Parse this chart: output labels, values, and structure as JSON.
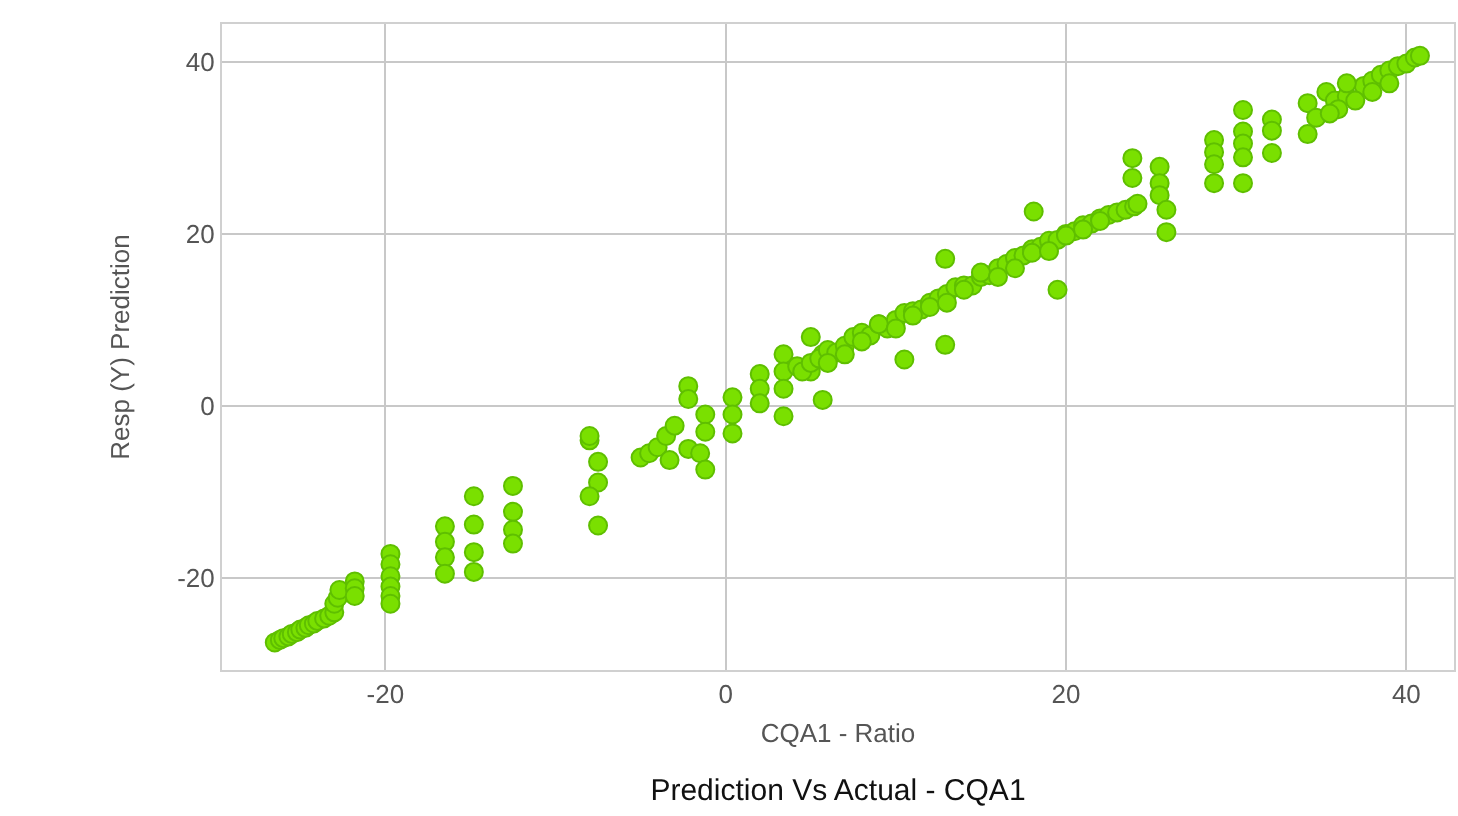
{
  "chart_data": {
    "type": "scatter",
    "title": "Prediction Vs Actual - CQA1",
    "xlabel": "CQA1 - Ratio",
    "ylabel": "Resp (Y) Prediction",
    "xlim": [
      -29.6,
      42.8
    ],
    "ylim": [
      -30.7,
      44.4
    ],
    "xticks": [
      -20,
      0,
      20,
      40
    ],
    "yticks": [
      -20,
      0,
      20,
      40
    ],
    "grid": true,
    "marker": "circle",
    "series": [
      {
        "color": "#7ae000",
        "x": [
          -26.5,
          -26.2,
          -26,
          -25.7,
          -25.5,
          -25.2,
          -25,
          -24.7,
          -24.5,
          -24.2,
          -24,
          -23.6,
          -23.3,
          -23,
          -23,
          -22.8,
          -22.7,
          -21.8,
          -21.8,
          -21.8,
          -19.7,
          -19.7,
          -19.7,
          -19.7,
          -19.7,
          -19.7,
          -16.5,
          -16.5,
          -16.5,
          -16.5,
          -14.8,
          -14.8,
          -14.8,
          -14.8,
          -12.5,
          -12.5,
          -12.5,
          -12.5,
          -8,
          -8,
          -7.5,
          -7.5,
          -8,
          -7.5,
          -5,
          -4.5,
          -4,
          -3.5,
          -3,
          -3.3,
          -2.2,
          -2.2,
          -1.2,
          -1.2,
          -2.2,
          -1.5,
          -1.2,
          0.4,
          0.4,
          0.4,
          2,
          2,
          2,
          3.4,
          3.4,
          3.4,
          3.4,
          5,
          5.7,
          5,
          5.7,
          4.2,
          4.5,
          5,
          5.5,
          6,
          6.5,
          7,
          7.5,
          8,
          8.5,
          9,
          9.5,
          10,
          10.5,
          11,
          11.5,
          12,
          12.5,
          13,
          13.5,
          14,
          14.5,
          15,
          15.5,
          16,
          16.5,
          17,
          17.5,
          18,
          18.5,
          19,
          19.5,
          20,
          20.5,
          21,
          21.5,
          22,
          22.5,
          23,
          23.5,
          24,
          24.2,
          6,
          7,
          8,
          9,
          10,
          11,
          12,
          13,
          14,
          15,
          16,
          17,
          18,
          19,
          20,
          21,
          22,
          12.9,
          10.5,
          19.5,
          18.1,
          12.9,
          23.9,
          23.9,
          25.9,
          25.5,
          25.5,
          25.5,
          25.9,
          28.7,
          28.7,
          28.7,
          28.7,
          30.4,
          30.4,
          30.4,
          30.4,
          30.4,
          32.1,
          32.1,
          32.1,
          34.2,
          34.7,
          34.2,
          35.3,
          35.8,
          36.5,
          37.5,
          38,
          38.5,
          39,
          39.5,
          40,
          40.5,
          40.8,
          36,
          37,
          38,
          39,
          35.5,
          36.5
        ],
        "values": [
          -27.5,
          -27.2,
          -27,
          -26.8,
          -26.5,
          -26.3,
          -26,
          -25.8,
          -25.5,
          -25.3,
          -25,
          -24.7,
          -24.4,
          -24,
          -23,
          -22.3,
          -21.4,
          -20.4,
          -21.2,
          -22.1,
          -17.2,
          -18.4,
          -19.8,
          -21,
          -22.1,
          -23,
          -14,
          -15.8,
          -17.6,
          -19.5,
          -10.5,
          -13.8,
          -17,
          -19.3,
          -9.3,
          -12.3,
          -14.4,
          -16,
          -4,
          -3.5,
          -6.5,
          -8.9,
          -10.5,
          -13.9,
          -6,
          -5.5,
          -4.8,
          -3.5,
          -2.3,
          -6.3,
          2.3,
          0.8,
          -1,
          -3,
          -5,
          -5.5,
          -7.4,
          1,
          -1,
          -3.2,
          3.7,
          2,
          0.3,
          6,
          4,
          2,
          -1.2,
          8,
          6,
          4,
          0.7,
          4.6,
          4,
          5,
          5.5,
          6.5,
          6.2,
          7,
          8,
          8.5,
          8.2,
          9.5,
          9,
          10,
          10.8,
          11,
          11.2,
          12,
          12.5,
          13,
          13.8,
          14,
          14,
          15,
          15.2,
          16,
          16.5,
          17.2,
          17.5,
          18.2,
          18.5,
          19.2,
          19.3,
          20,
          20.3,
          21,
          21.2,
          21.8,
          22.2,
          22.5,
          22.8,
          23.2,
          23.5,
          5,
          6,
          7.5,
          9.5,
          9,
          10.5,
          11.5,
          12,
          13.5,
          15.5,
          15,
          16,
          17.8,
          18,
          19.8,
          20.5,
          21.5,
          7.1,
          5.4,
          13.5,
          22.6,
          17.1,
          28.8,
          26.5,
          20.2,
          27.8,
          25.9,
          24.5,
          22.8,
          30.9,
          29.5,
          28.1,
          25.9,
          34.4,
          31.9,
          30.5,
          28.9,
          25.9,
          33.3,
          32,
          29.4,
          35.2,
          33.5,
          31.6,
          36.5,
          35.5,
          36,
          37.2,
          37.8,
          38.5,
          39,
          39.5,
          39.8,
          40.5,
          40.7,
          34.5,
          35.5,
          36.5,
          37.5,
          34,
          37.5
        ]
      }
    ]
  }
}
